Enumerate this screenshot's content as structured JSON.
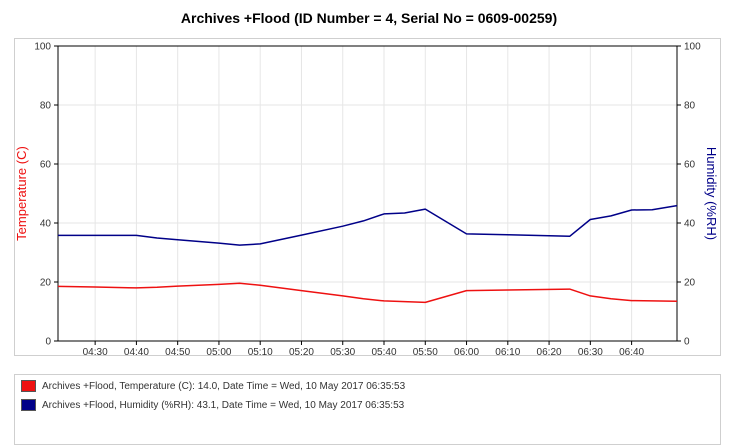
{
  "chart_data": {
    "type": "line",
    "title": "Archives +Flood (ID Number = 4, Serial No = 0609-00259)",
    "y_left_label": "Temperature (C)",
    "y_right_label": "Humidity (%RH)",
    "y_left_range": [
      0,
      100
    ],
    "y_right_range": [
      0,
      100
    ],
    "y_ticks": [
      "0",
      "20",
      "40",
      "60",
      "80",
      "100"
    ],
    "x_range": [
      "04:21",
      "06:51"
    ],
    "x_ticks": [
      "04:30",
      "04:40",
      "04:50",
      "05:00",
      "05:10",
      "05:20",
      "05:30",
      "05:40",
      "05:50",
      "06:00",
      "06:10",
      "06:20",
      "06:30",
      "06:40"
    ],
    "grid": true,
    "series": [
      {
        "name": "Temperature (C)",
        "axis": "left",
        "color": "#ee1111",
        "points": [
          [
            "04:21",
            18.5
          ],
          [
            "04:30",
            18.3
          ],
          [
            "04:40",
            18.0
          ],
          [
            "04:45",
            18.2
          ],
          [
            "04:50",
            18.6
          ],
          [
            "05:00",
            19.2
          ],
          [
            "05:05",
            19.6
          ],
          [
            "05:10",
            18.9
          ],
          [
            "05:20",
            17.1
          ],
          [
            "05:30",
            15.3
          ],
          [
            "05:35",
            14.3
          ],
          [
            "05:40",
            13.6
          ],
          [
            "05:50",
            13.1
          ],
          [
            "06:00",
            17.1
          ],
          [
            "06:10",
            17.3
          ],
          [
            "06:25",
            17.6
          ],
          [
            "06:30",
            15.3
          ],
          [
            "06:35",
            14.3
          ],
          [
            "06:40",
            13.7
          ],
          [
            "06:45",
            13.6
          ],
          [
            "06:51",
            13.5
          ]
        ]
      },
      {
        "name": "Humidity (%RH)",
        "axis": "right",
        "color": "#000088",
        "points": [
          [
            "04:21",
            35.8
          ],
          [
            "04:30",
            35.8
          ],
          [
            "04:40",
            35.8
          ],
          [
            "04:45",
            34.9
          ],
          [
            "04:50",
            34.3
          ],
          [
            "05:00",
            33.2
          ],
          [
            "05:05",
            32.5
          ],
          [
            "05:10",
            32.9
          ],
          [
            "05:20",
            35.9
          ],
          [
            "05:30",
            38.9
          ],
          [
            "05:35",
            40.7
          ],
          [
            "05:40",
            43.1
          ],
          [
            "05:45",
            43.4
          ],
          [
            "05:50",
            44.7
          ],
          [
            "06:00",
            36.3
          ],
          [
            "06:10",
            36.0
          ],
          [
            "06:25",
            35.5
          ],
          [
            "06:30",
            41.2
          ],
          [
            "06:35",
            42.4
          ],
          [
            "06:40",
            44.4
          ],
          [
            "06:45",
            44.5
          ],
          [
            "06:51",
            45.9
          ]
        ]
      }
    ]
  },
  "legend": [
    {
      "text": "Archives +Flood, Temperature (C): 14.0, Date Time = Wed, 10 May 2017 06:35:53",
      "color": "#ee1111"
    },
    {
      "text": "Archives +Flood, Humidity (%RH): 43.1, Date Time = Wed, 10 May 2017 06:35:53",
      "color": "#000088"
    }
  ]
}
